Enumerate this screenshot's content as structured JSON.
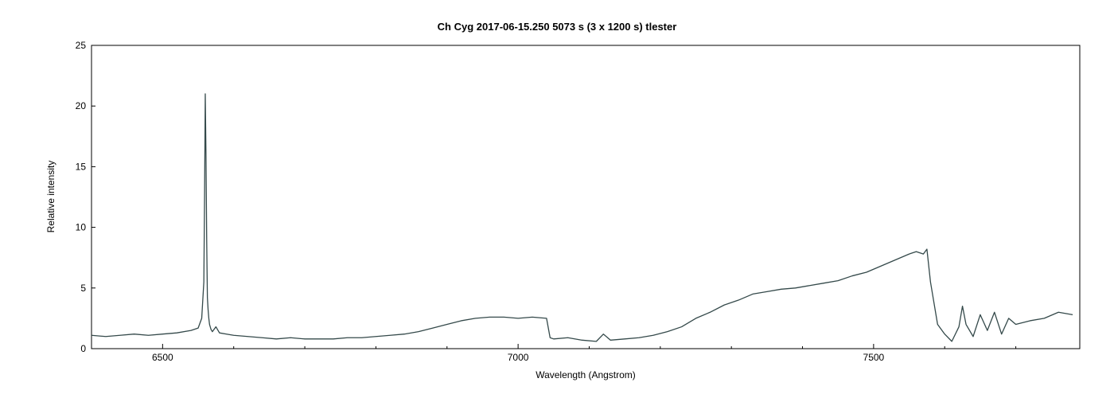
{
  "chart_data": {
    "type": "line",
    "title": "Ch Cyg   2017-06-15.250   5073 s (3 x 1200 s)   tlester",
    "xlabel": "Wavelength (Angstrom)",
    "ylabel": "Relative intensity",
    "xlim": [
      6400,
      7790
    ],
    "ylim": [
      0,
      25
    ],
    "x_ticks": [
      6500,
      7000,
      7500
    ],
    "x_minor_ticks": [
      6400,
      6600,
      6700,
      6800,
      6900,
      7100,
      7200,
      7300,
      7400,
      7600,
      7700
    ],
    "y_ticks": [
      0,
      5,
      10,
      15,
      20,
      25
    ],
    "grid": false,
    "line_color": "#34494a",
    "series": [
      {
        "x": [
          6400,
          6420,
          6440,
          6460,
          6480,
          6500,
          6520,
          6540,
          6550,
          6555,
          6558,
          6559,
          6560,
          6561,
          6562,
          6562.5,
          6563,
          6564,
          6565,
          6566,
          6568,
          6570,
          6575,
          6580,
          6590,
          6600,
          6620,
          6640,
          6660,
          6680,
          6700,
          6720,
          6740,
          6760,
          6780,
          6800,
          6820,
          6840,
          6860,
          6880,
          6900,
          6920,
          6940,
          6960,
          6980,
          7000,
          7020,
          7040,
          7045,
          7050,
          7070,
          7090,
          7110,
          7120,
          7130,
          7150,
          7170,
          7190,
          7210,
          7230,
          7250,
          7270,
          7290,
          7310,
          7330,
          7350,
          7370,
          7390,
          7410,
          7430,
          7450,
          7470,
          7490,
          7510,
          7530,
          7550,
          7560,
          7570,
          7575,
          7580,
          7590,
          7600,
          7610,
          7620,
          7625,
          7630,
          7640,
          7650,
          7660,
          7670,
          7680,
          7690,
          7700,
          7720,
          7740,
          7760,
          7780
        ],
        "y": [
          1.1,
          1.0,
          1.1,
          1.2,
          1.1,
          1.2,
          1.3,
          1.5,
          1.7,
          2.5,
          5.5,
          12.4,
          21.0,
          16.0,
          9.0,
          6.5,
          4.2,
          3.2,
          2.5,
          2.0,
          1.6,
          1.4,
          1.8,
          1.3,
          1.2,
          1.1,
          1.0,
          0.9,
          0.8,
          0.9,
          0.8,
          0.8,
          0.8,
          0.9,
          0.9,
          1.0,
          1.1,
          1.2,
          1.4,
          1.7,
          2.0,
          2.3,
          2.5,
          2.6,
          2.6,
          2.5,
          2.6,
          2.5,
          0.9,
          0.8,
          0.9,
          0.7,
          0.6,
          1.2,
          0.7,
          0.8,
          0.9,
          1.1,
          1.4,
          1.8,
          2.5,
          3.0,
          3.6,
          4.0,
          4.5,
          4.7,
          4.9,
          5.0,
          5.2,
          5.4,
          5.6,
          6.0,
          6.3,
          6.8,
          7.3,
          7.8,
          8.0,
          7.8,
          8.2,
          5.5,
          2.0,
          1.2,
          0.6,
          1.8,
          3.5,
          2.0,
          1.0,
          2.8,
          1.5,
          3.0,
          1.2,
          2.5,
          2.0,
          2.3,
          2.5,
          3.0,
          2.8
        ]
      }
    ]
  }
}
